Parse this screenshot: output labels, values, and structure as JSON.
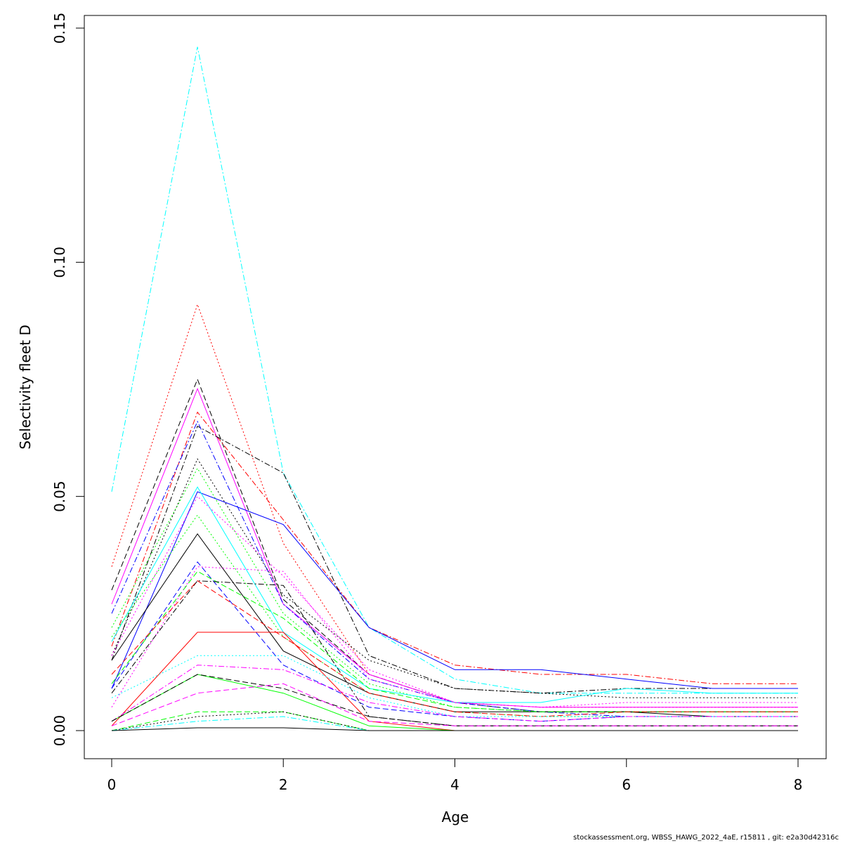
{
  "chart_data": {
    "type": "line",
    "xlabel": "Age",
    "ylabel": "Selectivity fleet D",
    "xlim": [
      0,
      8
    ],
    "ylim": [
      0,
      0.15
    ],
    "x_ticks": [
      0,
      2,
      4,
      6,
      8
    ],
    "y_ticks": [
      0.0,
      0.05,
      0.1,
      0.15
    ],
    "y_tick_labels": [
      "0.00",
      "0.05",
      "0.10",
      "0.15"
    ],
    "grid": false,
    "legend": "none",
    "x": [
      0,
      1,
      2,
      3,
      4,
      5,
      6,
      7,
      8
    ],
    "series": [
      {
        "color": "#00ffff",
        "dash": "dashdot",
        "values": [
          0.051,
          0.146,
          0.055,
          0.022,
          0.011,
          0.008,
          0.008,
          0.008,
          0.008
        ]
      },
      {
        "color": "#ff0000",
        "dash": "dotted",
        "values": [
          0.035,
          0.091,
          0.04,
          0.012,
          0.006,
          0.005,
          0.005,
          0.005,
          0.005
        ]
      },
      {
        "color": "#000000",
        "dash": "dashed",
        "values": [
          0.03,
          0.075,
          0.028,
          0.012,
          0.006,
          0.004,
          0.004,
          0.004,
          0.004
        ]
      },
      {
        "color": "#ff00ff",
        "dash": "solid",
        "values": [
          0.027,
          0.073,
          0.027,
          0.012,
          0.006,
          0.005,
          0.005,
          0.005,
          0.005
        ]
      },
      {
        "color": "#ff0000",
        "dash": "dashdot",
        "values": [
          0.018,
          0.068,
          0.045,
          0.022,
          0.014,
          0.012,
          0.012,
          0.01,
          0.01
        ]
      },
      {
        "color": "#000000",
        "dash": "dashdot",
        "values": [
          0.015,
          0.065,
          0.055,
          0.016,
          0.009,
          0.008,
          0.009,
          0.009,
          0.009
        ]
      },
      {
        "color": "#0000ff",
        "dash": "dashdot",
        "values": [
          0.025,
          0.066,
          0.027,
          0.011,
          0.006,
          0.004,
          0.003,
          0.003,
          0.003
        ]
      },
      {
        "color": "#000000",
        "dash": "dotted",
        "values": [
          0.016,
          0.058,
          0.029,
          0.015,
          0.009,
          0.008,
          0.007,
          0.007,
          0.007
        ]
      },
      {
        "color": "#00ff00",
        "dash": "dotted",
        "values": [
          0.022,
          0.056,
          0.025,
          0.01,
          0.005,
          0.004,
          0.004,
          0.004,
          0.004
        ]
      },
      {
        "color": "#0000ff",
        "dash": "solid",
        "values": [
          0.009,
          0.051,
          0.044,
          0.022,
          0.013,
          0.013,
          0.011,
          0.009,
          0.009
        ]
      },
      {
        "color": "#00ffff",
        "dash": "solid",
        "values": [
          0.019,
          0.052,
          0.021,
          0.009,
          0.006,
          0.006,
          0.009,
          0.008,
          0.008
        ]
      },
      {
        "color": "#ff00ff",
        "dash": "dotted",
        "values": [
          0.016,
          0.05,
          0.033,
          0.013,
          0.006,
          0.005,
          0.006,
          0.006,
          0.006
        ]
      },
      {
        "color": "#00ff00",
        "dash": "dotted",
        "values": [
          0.02,
          0.046,
          0.02,
          0.008,
          0.004,
          0.003,
          0.003,
          0.003,
          0.003
        ]
      },
      {
        "color": "#000000",
        "dash": "solid",
        "values": [
          0.015,
          0.042,
          0.017,
          0.008,
          0.004,
          0.004,
          0.004,
          0.003,
          0.003
        ]
      },
      {
        "color": "#0000ff",
        "dash": "dashed",
        "values": [
          0.009,
          0.036,
          0.014,
          0.005,
          0.003,
          0.002,
          0.003,
          0.003,
          0.003
        ]
      },
      {
        "color": "#ff00ff",
        "dash": "dotted",
        "values": [
          0.005,
          0.035,
          0.034,
          0.011,
          0.006,
          0.005,
          0.005,
          0.005,
          0.005
        ]
      },
      {
        "color": "#00ff00",
        "dash": "dashed",
        "values": [
          0.01,
          0.034,
          0.024,
          0.009,
          0.005,
          0.004,
          0.004,
          0.004,
          0.004
        ]
      },
      {
        "color": "#000000",
        "dash": "dashdot",
        "values": [
          0.008,
          0.032,
          0.031,
          0.003,
          0.001,
          0.001,
          0.001,
          0.001,
          0.001
        ]
      },
      {
        "color": "#ff0000",
        "dash": "dashed",
        "values": [
          0.012,
          0.032,
          0.02,
          0.008,
          0.004,
          0.003,
          0.004,
          0.004,
          0.004
        ]
      },
      {
        "color": "#ff0000",
        "dash": "solid",
        "values": [
          0.001,
          0.021,
          0.021,
          0.002,
          0.0,
          0.0,
          0.0,
          0.0,
          0.0
        ]
      },
      {
        "color": "#00ffff",
        "dash": "dotted",
        "values": [
          0.007,
          0.016,
          0.016,
          0.007,
          0.003,
          0.003,
          0.003,
          0.003,
          0.003
        ]
      },
      {
        "color": "#ff00ff",
        "dash": "dashdot",
        "values": [
          0.002,
          0.014,
          0.013,
          0.006,
          0.003,
          0.002,
          0.003,
          0.003,
          0.003
        ]
      },
      {
        "color": "#00ff00",
        "dash": "solid",
        "values": [
          0.002,
          0.012,
          0.008,
          0.001,
          0.0,
          0.0,
          0.0,
          0.0,
          0.0
        ]
      },
      {
        "color": "#000000",
        "dash": "dashed",
        "values": [
          0.002,
          0.012,
          0.009,
          0.003,
          0.001,
          0.001,
          0.001,
          0.001,
          0.001
        ]
      },
      {
        "color": "#ff00ff",
        "dash": "dashed",
        "values": [
          0.001,
          0.008,
          0.01,
          0.002,
          0.001,
          0.001,
          0.001,
          0.001,
          0.001
        ]
      },
      {
        "color": "#00ff00",
        "dash": "dashed",
        "values": [
          0.0,
          0.004,
          0.004,
          0.0,
          0.0,
          0.0,
          0.0,
          0.0,
          0.0
        ]
      },
      {
        "color": "#000000",
        "dash": "dotted",
        "values": [
          0.0,
          0.003,
          0.004,
          0.0,
          0.0,
          0.0,
          0.0,
          0.0,
          0.0
        ]
      },
      {
        "color": "#00ffff",
        "dash": "dashdot",
        "values": [
          0.0,
          0.002,
          0.003,
          0.0,
          0.0,
          0.0,
          0.0,
          0.0,
          0.0
        ]
      },
      {
        "color": "#000000",
        "dash": "solid",
        "values": [
          0.0,
          0.0006,
          0.0006,
          0.0,
          0.0,
          0.0,
          0.0,
          0.0,
          0.0
        ]
      }
    ]
  },
  "footer": {
    "text": "stockassessment.org, WBSS_HAWG_2022_4aE, r15811 , git: e2a30d42316c"
  }
}
